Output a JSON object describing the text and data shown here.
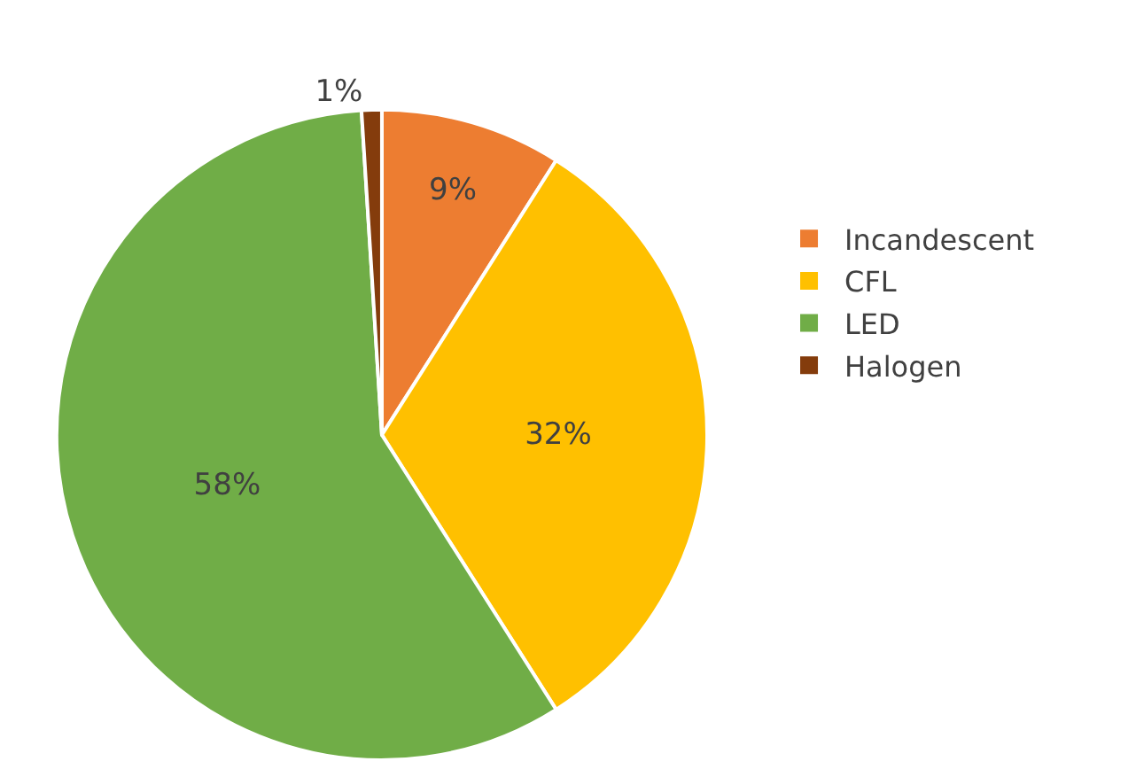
{
  "chart_data": {
    "type": "pie",
    "categories": [
      "Incandescent",
      "CFL",
      "LED",
      "Halogen"
    ],
    "values": [
      9,
      32,
      58,
      1
    ],
    "value_labels": [
      "9%",
      "32%",
      "58%",
      "1%"
    ],
    "colors": [
      "#ed7d31",
      "#ffc000",
      "#70ad47",
      "#843c0c"
    ],
    "legend": "right"
  }
}
